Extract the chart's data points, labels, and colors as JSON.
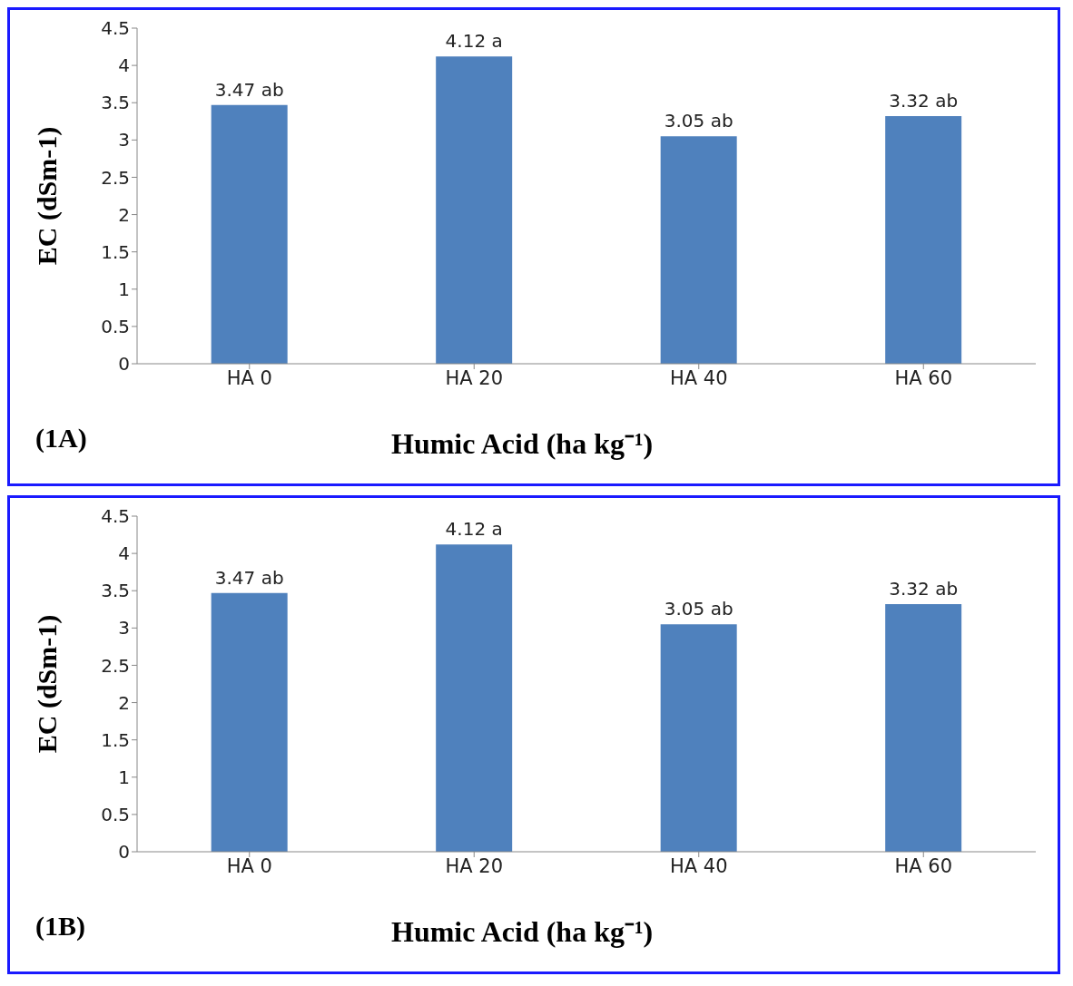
{
  "chart_data": [
    {
      "type": "bar",
      "categories": [
        "HA 0",
        "HA 20",
        "HA 40",
        "HA 60"
      ],
      "values": [
        3.47,
        4.12,
        3.05,
        3.32
      ],
      "color": "#4f81bd",
      "value_labels": [
        "3.47 ab",
        "4.12 a",
        "3.05 ab",
        "3.32 ab"
      ],
      "xlabel": "Humic Acid (ha kg⁻¹)",
      "ylabel": "EC (dSm-1)",
      "ylim": [
        0,
        4.5
      ],
      "yticks": [
        0,
        0.5,
        1,
        1.5,
        2,
        2.5,
        3,
        3.5,
        4,
        4.5
      ],
      "grid": false,
      "legend": false,
      "annotations": [
        "(1A)"
      ]
    },
    {
      "type": "bar",
      "categories": [
        "HA 0",
        "HA 20",
        "HA 40",
        "HA 60"
      ],
      "values": [
        3.47,
        4.12,
        3.05,
        3.32
      ],
      "color": "#4f81bd",
      "value_labels": [
        "3.47 ab",
        "4.12 a",
        "3.05 ab",
        "3.32 ab"
      ],
      "xlabel": "Humic Acid (ha kg⁻¹)",
      "ylabel": "EC (dSm-1)",
      "ylim": [
        0,
        4.5
      ],
      "yticks": [
        0,
        0.5,
        1,
        1.5,
        2,
        2.5,
        3,
        3.5,
        4,
        4.5
      ],
      "grid": false,
      "legend": false,
      "annotations": [
        "(1B)"
      ]
    }
  ]
}
